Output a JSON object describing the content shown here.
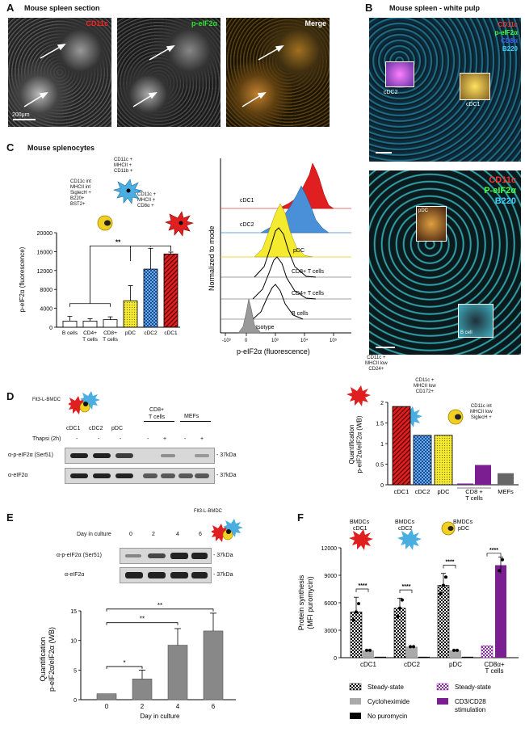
{
  "panels": {
    "A": {
      "letter": "A",
      "title": "Mouse spleen section",
      "labels": [
        "CD11c",
        "p-eIF2α",
        "Merge"
      ],
      "scale": "200μm"
    },
    "B": {
      "letter": "B",
      "title": "Mouse spleen - white pulp",
      "top_legend": [
        "CD11c",
        "p-eIF2α",
        "CD8α",
        "B220"
      ],
      "top_insets": [
        "cDC2",
        "cDC1"
      ],
      "bottom_legend": [
        "CD11c",
        "P-eIF2α",
        "B220"
      ],
      "bottom_insets": [
        "pDC",
        "B cell"
      ]
    },
    "C": {
      "letter": "C",
      "title": "Mouse splenocytes",
      "annot_cdc2": [
        "CD11c +",
        "MHCII +",
        "CD11b +"
      ],
      "annot_pdc": [
        "CD11c int",
        "MHCII int",
        "SiglecH +",
        "B220+",
        "BST2+"
      ],
      "annot_cdc1": [
        "CD11c +",
        "MHCII +",
        "CD8α +"
      ],
      "sig": "**",
      "hist_labels": [
        "cDC1",
        "cDC2",
        "pDC",
        "CD8+ T cells",
        "CD4+ T cells",
        "B cells",
        "Isotype"
      ],
      "hist_ylabel": "Normalized to mode",
      "hist_xlabel": "p-eIF2α  (fluorescence)",
      "hist_ticks": [
        "0",
        "10³",
        "10⁴",
        "10⁵"
      ],
      "hist_tick_neg": "-10³"
    },
    "D": {
      "letter": "D",
      "culture": "Flt3-L-BMDC",
      "lane_labels": [
        "cDC1",
        "cDC2",
        "pDC"
      ],
      "group_cd8": [
        "CD8+",
        "T cells"
      ],
      "group_mef": "MEFs",
      "thapsi_label": "Thapsi  (2h)",
      "thapsi": [
        "-",
        "-",
        "-",
        "-",
        "+",
        "-",
        "+"
      ],
      "blot_labels": [
        "α-p-eIF2α (Ser51)",
        "α-eIF2α"
      ],
      "mw": [
        "- 37kDa",
        "- 37kDa"
      ],
      "annot_cdc1": [
        "CD11c +",
        "MHCII low",
        "CD24+"
      ],
      "annot_cdc2": [
        "CD11c +",
        "MHCII low",
        "CD172+"
      ],
      "annot_pdc": [
        "CD11c int",
        "MHCII low",
        "SiglecH +"
      ]
    },
    "E": {
      "letter": "E",
      "culture": "Flt3-L-BMDC",
      "day_label": "Day in culture",
      "days": [
        "0",
        "2",
        "4",
        "6"
      ],
      "blot_labels": [
        "α-p-eIF2α (Ser51)",
        "α-eIF2α"
      ],
      "mw": [
        "- 37kDa",
        "- 37kDa"
      ],
      "sig": [
        "*",
        "**",
        "**"
      ]
    },
    "F": {
      "letter": "F",
      "groups": [
        {
          "top": "BMDCs",
          "bottom": "cDC1"
        },
        {
          "top": "BMDCs",
          "bottom": "cDC2"
        },
        {
          "top": "BMDCs",
          "bottom": "pDC"
        }
      ],
      "sig": [
        "****",
        "****",
        "****",
        "****"
      ],
      "legend": [
        "Steady-state",
        "Cycloheximide",
        "No puromycin",
        "Steady-state",
        "CD3/CD28",
        "stimulation"
      ]
    }
  },
  "chart_data": [
    {
      "type": "bar",
      "id": "C",
      "categories": [
        "B cells",
        "CD4+ T cells",
        "CD8+ T cells",
        "pDC",
        "cDC2",
        "cDC1"
      ],
      "values": [
        1300,
        1300,
        1600,
        5600,
        12300,
        15500
      ],
      "errors": [
        1000,
        500,
        600,
        3200,
        4400,
        400
      ],
      "ylabel": "p-eIF2α  (fluorescence)",
      "ylim": [
        0,
        20000
      ],
      "yticks": [
        "0",
        "4000",
        "8000",
        "12000",
        "16000",
        "20000"
      ],
      "xtick_lines": [
        [
          "B cells"
        ],
        [
          "CD4+",
          "T cells"
        ],
        [
          "CD8+",
          "T cells"
        ],
        [
          "pDC"
        ],
        [
          "cDC2"
        ],
        [
          "cDC1"
        ]
      ]
    },
    {
      "type": "bar",
      "id": "D",
      "categories": [
        "cDC1",
        "cDC2",
        "pDC",
        "CD8 + T cells (-)",
        "CD8 + T cells (+)",
        "MEFs (-)",
        "MEFs (+)"
      ],
      "values": [
        1.9,
        1.2,
        1.2,
        0.03,
        0.48,
        0.0,
        0.28
      ],
      "ylabel": "Quantification p-eIF2α/eIF2α (WB)",
      "ylim": [
        0,
        2
      ],
      "yticks": [
        "0",
        "0.5",
        "1",
        "1.5",
        "2"
      ],
      "xtick_lines": [
        [
          "cDC1"
        ],
        [
          "cDC2"
        ],
        [
          "pDC"
        ],
        [
          "CD8 +",
          "T cells"
        ],
        [
          "MEFs"
        ]
      ]
    },
    {
      "type": "bar",
      "id": "E",
      "categories": [
        "0",
        "2",
        "4",
        "6"
      ],
      "values": [
        1,
        3.5,
        9.2,
        11.6
      ],
      "errors": [
        0,
        1.5,
        2.8,
        3.0
      ],
      "ylabel": "Quantification p-eIF2α/eIF2α (WB)",
      "xlabel": "Day in culture",
      "ylim": [
        0,
        15
      ],
      "yticks": [
        "0",
        "5",
        "10",
        "15"
      ]
    },
    {
      "type": "bar",
      "id": "F",
      "categories": [
        "cDC1",
        "cDC2",
        "pDC",
        "CD8α+ T cells"
      ],
      "series": [
        {
          "name": "Steady-state",
          "values": [
            5000,
            5400,
            7900,
            null
          ]
        },
        {
          "name": "Cycloheximide",
          "values": [
            800,
            1200,
            800,
            null
          ]
        },
        {
          "name": "No puromycin",
          "values": [
            100,
            100,
            100,
            null
          ]
        },
        {
          "name": "Steady-state (T cells)",
          "values": [
            null,
            null,
            null,
            1300
          ]
        },
        {
          "name": "CD3/CD28 stimulation",
          "values": [
            null,
            null,
            null,
            10100
          ]
        }
      ],
      "errors": [
        1600,
        1100,
        1300,
        200
      ],
      "t_errors": [
        200,
        900
      ],
      "ylabel": "Protein synthesis (MFI puromycin)",
      "ylim": [
        0,
        12000
      ],
      "yticks": [
        "0",
        "3000",
        "6000",
        "9000",
        "12000"
      ],
      "xtick_lines": [
        [
          "cDC1"
        ],
        [
          "cDC2"
        ],
        [
          "pDC"
        ],
        [
          "CD8α+",
          "T cells"
        ]
      ]
    }
  ]
}
